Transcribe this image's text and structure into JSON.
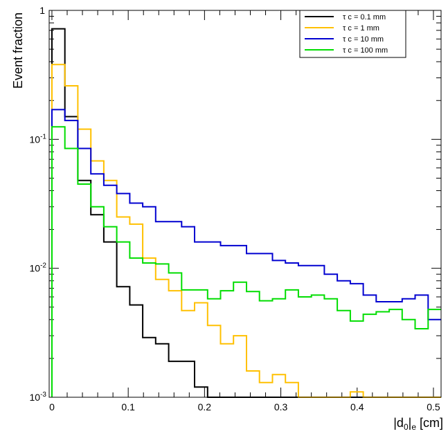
{
  "chart_data": {
    "type": "line",
    "title": "",
    "xlabel_main": "|d",
    "xlabel_sub0": "0",
    "xlabel_bar": "|",
    "xlabel_sube": "e",
    "xlabel_unit": " [cm]",
    "ylabel": "Event fraction",
    "xlim": [
      -0.0036,
      0.51
    ],
    "ylim": [
      0.001,
      1
    ],
    "yscale": "log",
    "x_ticks": [
      "0",
      "0.1",
      "0.2",
      "0.3",
      "0.4",
      "0.5"
    ],
    "y_tick_one": "1",
    "y_tick_base": "10",
    "y_tick_exps": [
      "-1",
      "-2",
      "-3"
    ],
    "legend_position": "top-right",
    "bin_edges": [
      0,
      0.017,
      0.034,
      0.051,
      0.068,
      0.085,
      0.102,
      0.119,
      0.136,
      0.153,
      0.17,
      0.187,
      0.204,
      0.221,
      0.238,
      0.255,
      0.272,
      0.289,
      0.306,
      0.323,
      0.34,
      0.357,
      0.374,
      0.391,
      0.408,
      0.425,
      0.442,
      0.459,
      0.476,
      0.493,
      0.51
    ],
    "series": [
      {
        "name": "τ c = 0.1 mm",
        "color": "#000000",
        "values": [
          0.72,
          0.15,
          0.048,
          0.026,
          0.016,
          0.0072,
          0.0052,
          0.0029,
          0.0026,
          0.0019,
          0.0019,
          0.0012,
          0.001,
          0.001,
          0.001,
          0.001,
          0.001,
          0.001,
          0.001,
          0.001,
          0.001,
          0.001,
          0.001,
          0.001,
          0.001,
          0.001,
          0.001,
          0.001,
          0.001,
          0.001
        ]
      },
      {
        "name": "τ c = 1 mm",
        "color": "#ffc000",
        "values": [
          0.38,
          0.26,
          0.12,
          0.068,
          0.048,
          0.025,
          0.022,
          0.012,
          0.0082,
          0.0067,
          0.0047,
          0.0054,
          0.0036,
          0.0026,
          0.003,
          0.0016,
          0.0013,
          0.0015,
          0.0013,
          0.001,
          0.001,
          0.001,
          0.001,
          0.0011,
          0.001,
          0.001,
          0.001,
          0.001,
          0.001,
          0.001
        ]
      },
      {
        "name": "τ c = 10 mm",
        "color": "#0000d0",
        "values": [
          0.17,
          0.14,
          0.085,
          0.054,
          0.044,
          0.038,
          0.032,
          0.03,
          0.023,
          0.023,
          0.021,
          0.016,
          0.016,
          0.015,
          0.015,
          0.013,
          0.013,
          0.0115,
          0.011,
          0.0105,
          0.0105,
          0.009,
          0.008,
          0.0076,
          0.0062,
          0.0055,
          0.0055,
          0.0058,
          0.0062,
          0.004
        ]
      },
      {
        "name": "τ c = 100 mm",
        "color": "#00dd00",
        "values": [
          0.125,
          0.085,
          0.045,
          0.03,
          0.021,
          0.016,
          0.012,
          0.011,
          0.0108,
          0.0092,
          0.0068,
          0.0068,
          0.0058,
          0.0067,
          0.0078,
          0.0066,
          0.0056,
          0.0058,
          0.0068,
          0.006,
          0.0062,
          0.0058,
          0.0047,
          0.0039,
          0.0044,
          0.0046,
          0.0048,
          0.004,
          0.0034,
          0.0048
        ]
      }
    ]
  }
}
